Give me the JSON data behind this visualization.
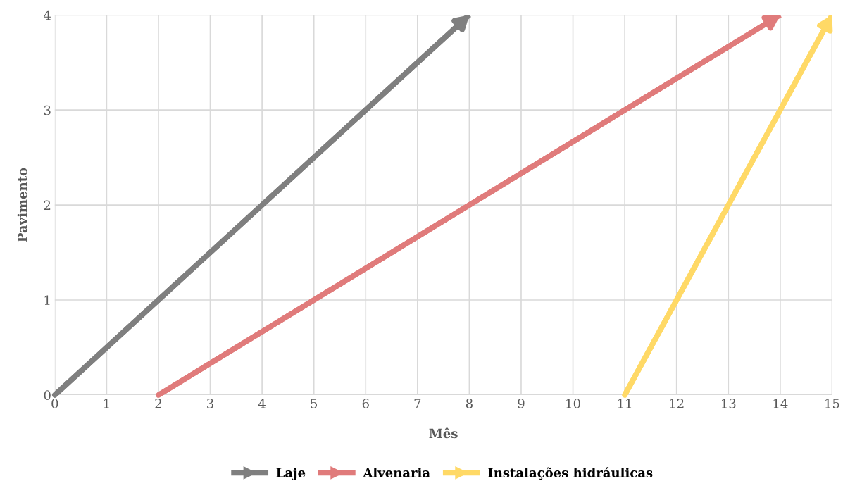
{
  "chart_data": {
    "type": "line",
    "xlabel": "Mês",
    "ylabel": "Pavimento",
    "xlim": [
      0,
      15
    ],
    "xticks": [
      0,
      1,
      2,
      3,
      4,
      5,
      6,
      7,
      8,
      9,
      10,
      11,
      12,
      13,
      14,
      15
    ],
    "ylim": [
      0,
      4
    ],
    "yticks": [
      0,
      1,
      2,
      3,
      4
    ],
    "grid": true,
    "legend": "bottom",
    "marker": "none",
    "line_style": "solid",
    "series": [
      {
        "name": "Laje",
        "color": "#7f7f7f",
        "x": [
          0,
          8
        ],
        "values": [
          0,
          4
        ]
      },
      {
        "name": "Alvenaria",
        "color": "#e07b7b",
        "x": [
          2,
          14
        ],
        "values": [
          0,
          4
        ]
      },
      {
        "name": "Instalações hidráulicas",
        "color": "#ffd966",
        "x": [
          11,
          15
        ],
        "values": [
          0,
          4
        ]
      }
    ]
  }
}
